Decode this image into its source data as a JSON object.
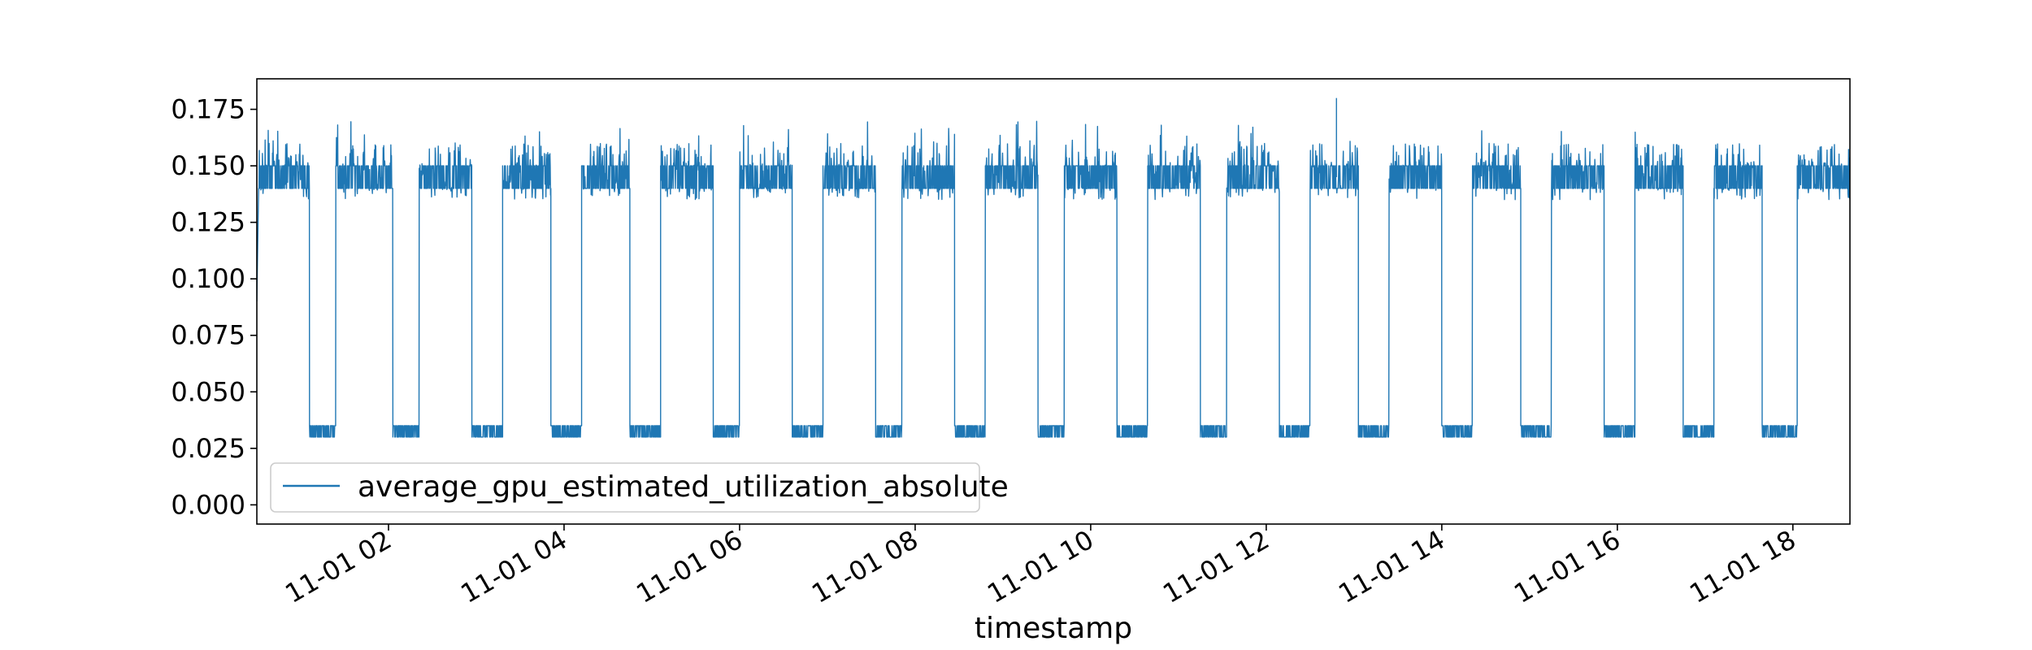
{
  "chart_data": {
    "type": "line",
    "xlabel": "timestamp",
    "ylabel": "",
    "ylim": [
      -0.0085,
      0.1885
    ],
    "xlim_hours": [
      0.5,
      18.65
    ],
    "x_ticks": [
      {
        "hour": 2,
        "label": "11-01 02"
      },
      {
        "hour": 4,
        "label": "11-01 04"
      },
      {
        "hour": 6,
        "label": "11-01 06"
      },
      {
        "hour": 8,
        "label": "11-01 08"
      },
      {
        "hour": 10,
        "label": "11-01 10"
      },
      {
        "hour": 12,
        "label": "11-01 12"
      },
      {
        "hour": 14,
        "label": "11-01 14"
      },
      {
        "hour": 16,
        "label": "11-01 16"
      },
      {
        "hour": 18,
        "label": "11-01 18"
      }
    ],
    "y_ticks": [
      {
        "value": 0.0,
        "label": "0.000"
      },
      {
        "value": 0.025,
        "label": "0.025"
      },
      {
        "value": 0.05,
        "label": "0.050"
      },
      {
        "value": 0.075,
        "label": "0.075"
      },
      {
        "value": 0.1,
        "label": "0.100"
      },
      {
        "value": 0.125,
        "label": "0.125"
      },
      {
        "value": 0.15,
        "label": "0.150"
      },
      {
        "value": 0.175,
        "label": "0.175"
      }
    ],
    "series": [
      {
        "name": "average_gpu_estimated_utilization_absolute",
        "color": "#1f77b4",
        "pattern": {
          "high_level_range": [
            0.135,
            0.16
          ],
          "low_level_range": [
            0.03,
            0.035
          ],
          "high_segments_hours": [
            [
              0.5,
              1.1
            ],
            [
              1.4,
              2.05
            ],
            [
              2.35,
              2.95
            ],
            [
              3.3,
              3.85
            ],
            [
              4.2,
              4.75
            ],
            [
              5.1,
              5.7
            ],
            [
              6.0,
              6.6
            ],
            [
              6.95,
              7.55
            ],
            [
              7.85,
              8.45
            ],
            [
              8.8,
              9.4
            ],
            [
              9.7,
              10.3
            ],
            [
              10.65,
              11.25
            ],
            [
              11.55,
              12.15
            ],
            [
              12.5,
              13.05
            ],
            [
              13.4,
              14.0
            ],
            [
              14.35,
              14.9
            ],
            [
              15.25,
              15.85
            ],
            [
              16.2,
              16.75
            ],
            [
              17.1,
              17.65
            ],
            [
              18.05,
              18.65
            ]
          ],
          "low_segments_hours": [
            [
              1.1,
              1.4
            ],
            [
              2.05,
              2.35
            ],
            [
              2.95,
              3.3
            ],
            [
              3.85,
              4.2
            ],
            [
              4.75,
              5.1
            ],
            [
              5.7,
              6.0
            ],
            [
              6.6,
              6.95
            ],
            [
              7.55,
              7.85
            ],
            [
              8.45,
              8.8
            ],
            [
              9.4,
              9.7
            ],
            [
              10.3,
              10.65
            ],
            [
              11.25,
              11.55
            ],
            [
              12.15,
              12.5
            ],
            [
              13.05,
              13.4
            ],
            [
              14.0,
              14.35
            ],
            [
              14.9,
              15.25
            ],
            [
              15.85,
              16.2
            ],
            [
              16.75,
              17.1
            ],
            [
              17.65,
              18.05
            ]
          ],
          "peak_value": 0.18,
          "min_value": 0.025,
          "start_value": 0.09
        }
      }
    ],
    "legend": {
      "position": "lower-left",
      "label": "average_gpu_estimated_utilization_absolute"
    },
    "grid": false
  }
}
